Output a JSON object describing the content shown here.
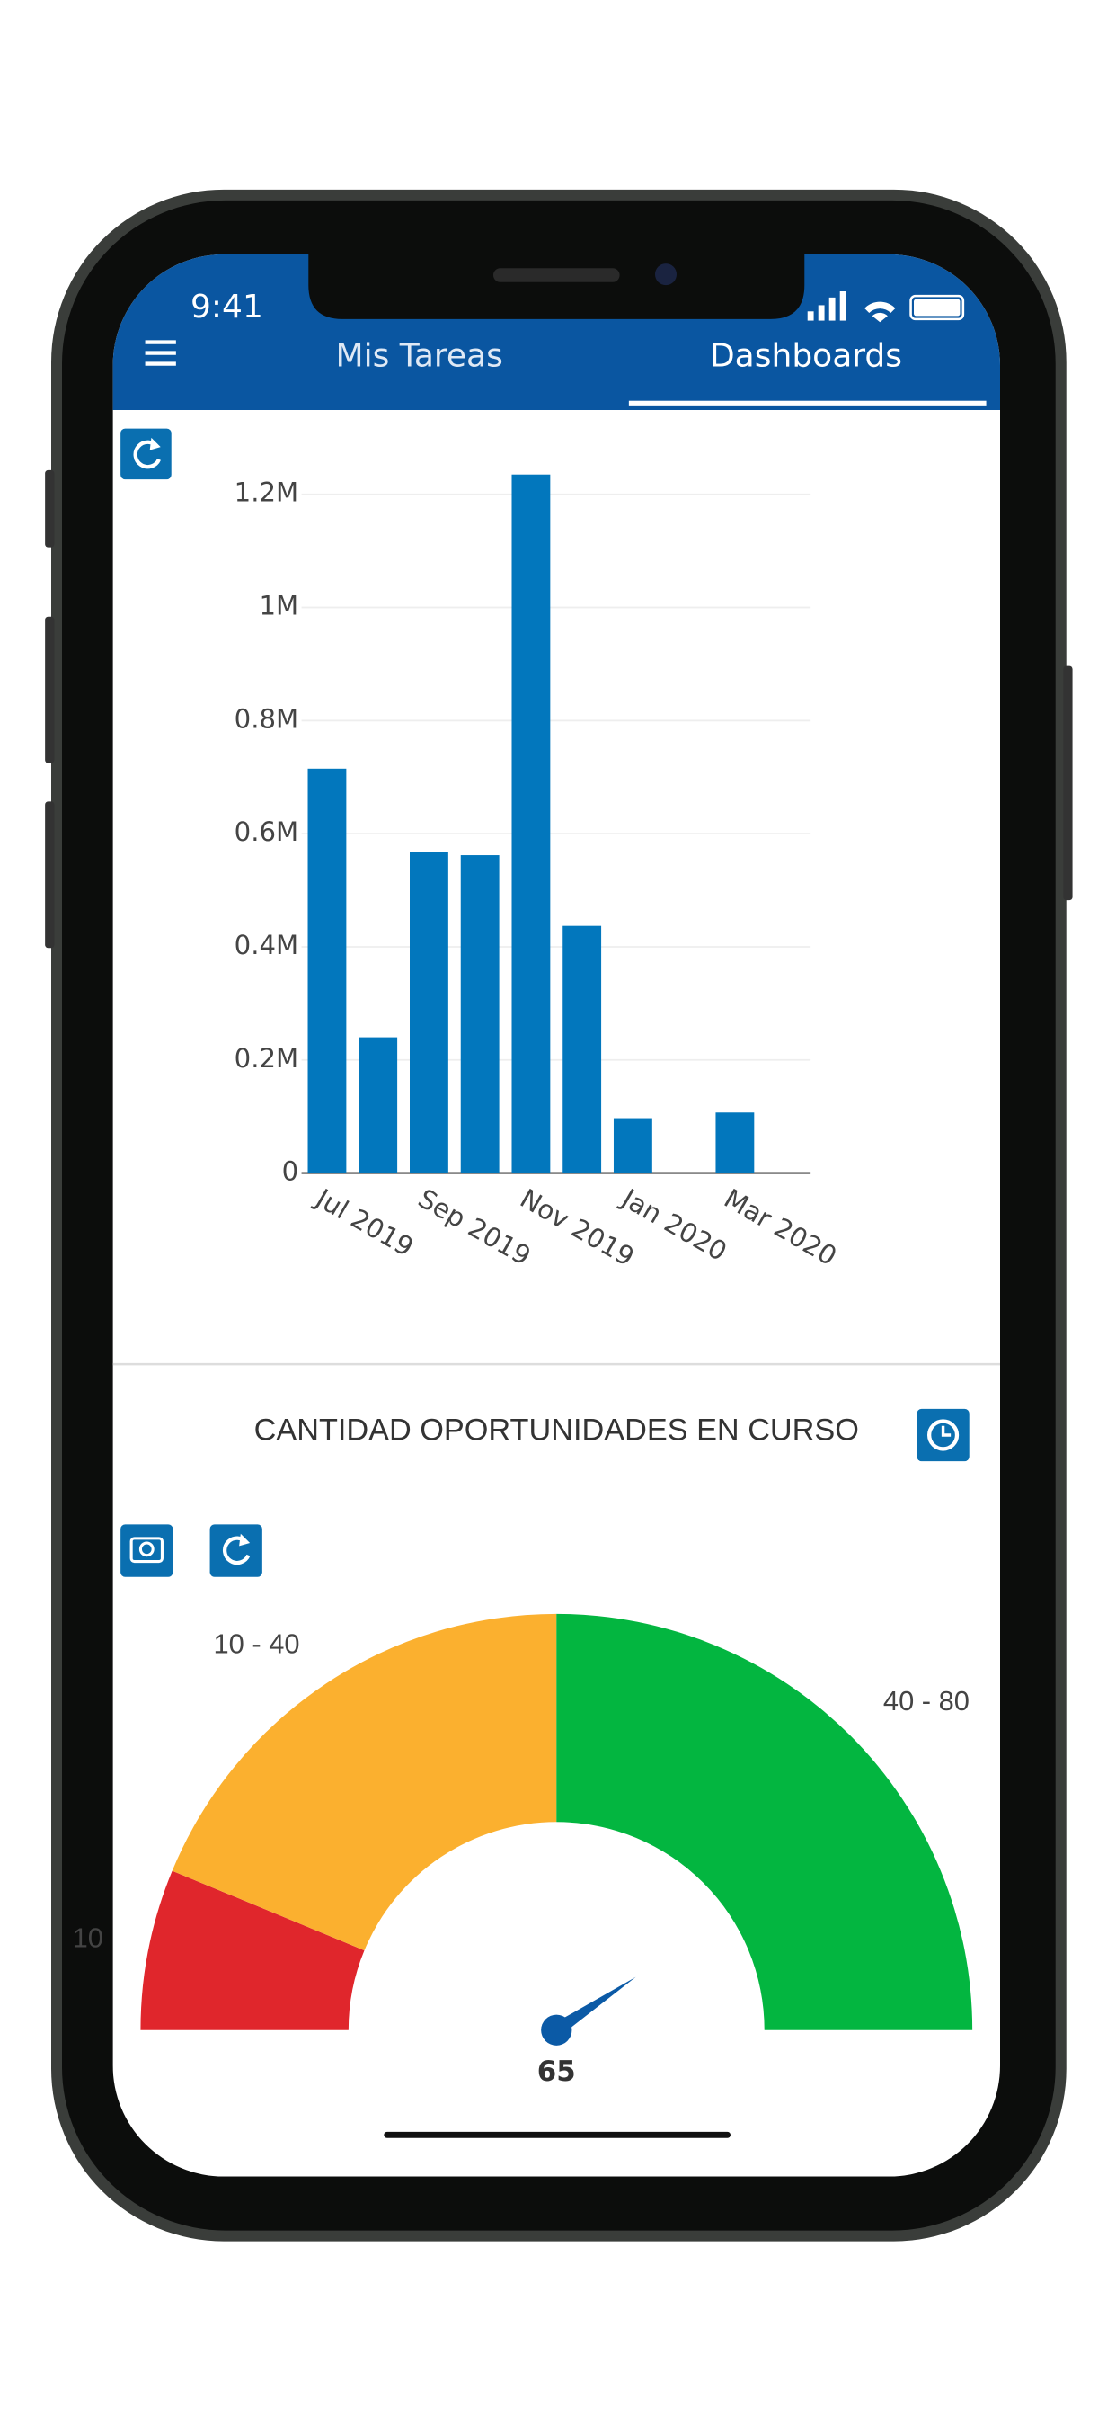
{
  "status_bar": {
    "time": "9:41"
  },
  "tabs": [
    "Mis Tareas",
    "Dashboards"
  ],
  "active_tab": 1,
  "chart_data": [
    {
      "type": "bar",
      "categories": [
        "Jul 2019",
        null,
        "Sep 2019",
        null,
        "Nov 2019",
        null,
        "Jan 2020",
        null,
        "Mar 2020"
      ],
      "values": [
        715000,
        240000,
        568000,
        562000,
        1235000,
        437000,
        97000,
        null,
        107000
      ],
      "color": "#0277bd",
      "ylim": [
        0,
        1240000
      ],
      "yticks": [
        0,
        {
          "value": 200000,
          "label": "0.2M"
        },
        {
          "value": 400000,
          "label": "0.4M"
        },
        {
          "value": 600000,
          "label": "0.6M"
        },
        {
          "value": 800000,
          "label": "0.8M"
        },
        {
          "value": 1000000,
          "label": "1M"
        },
        {
          "value": 1200000,
          "label": "1.2M"
        }
      ],
      "grid": true
    },
    {
      "type": "gauge",
      "title": "CANTIDAD OPORTUNIDADES EN CURSO",
      "min": 0,
      "max": 80,
      "value": 65,
      "needle_color": "#0b5aa6",
      "bands": [
        {
          "from": 0,
          "to": 10,
          "label": "10",
          "color": "#e0262c"
        },
        {
          "from": 10,
          "to": 40,
          "label": "10 - 40",
          "color": "#fbb02f"
        },
        {
          "from": 40,
          "to": 80,
          "label": "40 - 80",
          "color": "#03b640"
        }
      ]
    }
  ]
}
